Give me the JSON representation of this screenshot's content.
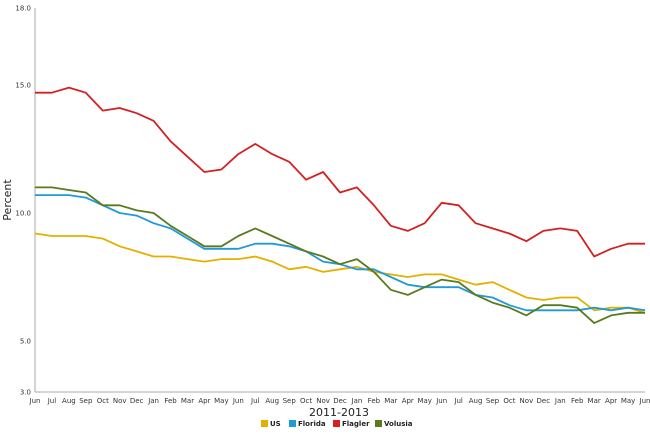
{
  "chart_data": {
    "type": "line",
    "xlabel": "2011-2013",
    "ylabel": "Percent",
    "ylim": [
      3.0,
      18.0
    ],
    "yticks": [
      "18.0",
      "15.0",
      "10.0",
      "5.0",
      "3.0"
    ],
    "grid": false,
    "legend_position": "bottom-center",
    "categories": [
      "Jun",
      "Jul",
      "Aug",
      "Sep",
      "Oct",
      "Nov",
      "Dec",
      "Jan",
      "Feb",
      "Mar",
      "Apr",
      "May",
      "Jun",
      "Jul",
      "Aug",
      "Sep",
      "Oct",
      "Nov",
      "Dec",
      "Jan",
      "Feb",
      "Mar",
      "Apr",
      "May",
      "Jun",
      "Jul",
      "Aug",
      "Sep",
      "Oct",
      "Nov",
      "Dec",
      "Jan",
      "Feb",
      "Mar",
      "Apr",
      "May",
      "Jun"
    ],
    "series": [
      {
        "name": "US",
        "color": "#e4b000",
        "values": [
          9.2,
          9.1,
          9.1,
          9.1,
          9.0,
          8.7,
          8.5,
          8.3,
          8.3,
          8.2,
          8.1,
          8.2,
          8.2,
          8.3,
          8.1,
          7.8,
          7.9,
          7.7,
          7.8,
          7.9,
          7.7,
          7.6,
          7.5,
          7.6,
          7.6,
          7.4,
          7.2,
          7.3,
          7.0,
          6.7,
          6.6,
          6.7,
          6.7,
          6.2,
          6.3,
          6.3,
          6.1
        ]
      },
      {
        "name": "Florida",
        "color": "#1f9ad6",
        "values": [
          10.7,
          10.7,
          10.7,
          10.6,
          10.3,
          10.0,
          9.9,
          9.6,
          9.4,
          9.0,
          8.6,
          8.6,
          8.6,
          8.8,
          8.8,
          8.7,
          8.5,
          8.1,
          8.0,
          7.8,
          7.8,
          7.5,
          7.2,
          7.1,
          7.1,
          7.1,
          6.8,
          6.7,
          6.4,
          6.2,
          6.2,
          6.2,
          6.2,
          6.3,
          6.2,
          6.3,
          6.2
        ]
      },
      {
        "name": "Flagler",
        "color": "#d42020",
        "values": [
          14.7,
          14.7,
          14.9,
          14.7,
          14.0,
          14.1,
          13.9,
          13.6,
          12.8,
          12.2,
          11.6,
          11.7,
          12.3,
          12.7,
          12.3,
          12.0,
          11.3,
          11.6,
          10.8,
          11.0,
          10.3,
          9.5,
          9.3,
          9.6,
          10.4,
          10.3,
          9.6,
          9.4,
          9.2,
          8.9,
          9.3,
          9.4,
          9.3,
          8.3,
          8.6,
          8.8,
          8.8
        ]
      },
      {
        "name": "Volusia",
        "color": "#5a7a1e",
        "values": [
          11.0,
          11.0,
          10.9,
          10.8,
          10.3,
          10.3,
          10.1,
          10.0,
          9.5,
          9.1,
          8.7,
          8.7,
          9.1,
          9.4,
          9.1,
          8.8,
          8.5,
          8.3,
          8.0,
          8.2,
          7.7,
          7.0,
          6.8,
          7.1,
          7.4,
          7.3,
          6.8,
          6.5,
          6.3,
          6.0,
          6.4,
          6.4,
          6.3,
          5.7,
          6.0,
          6.1,
          6.1
        ]
      }
    ]
  }
}
